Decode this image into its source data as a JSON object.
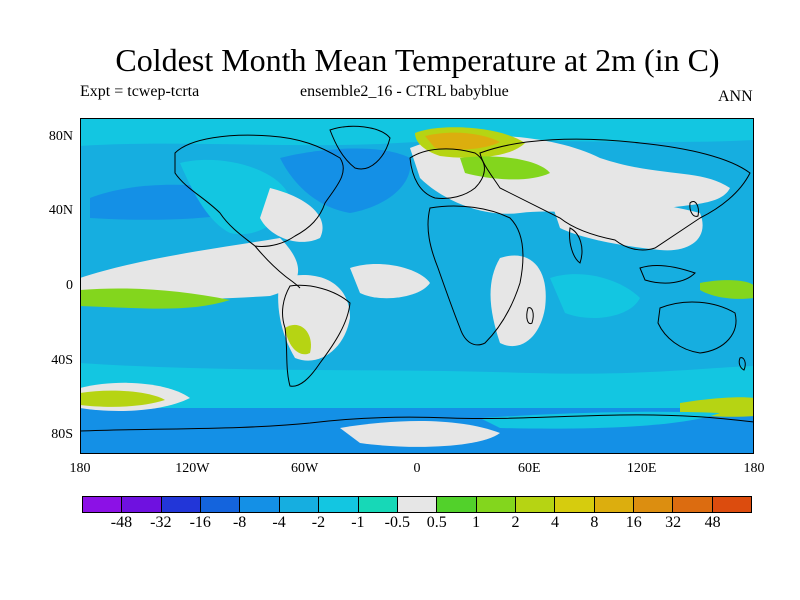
{
  "title": "Coldest Month Mean Temperature at 2m (in C)",
  "expt_label": "Expt = tcwep-tcrta",
  "case_label": "ensemble2_16 - CTRL babyblue",
  "season_label": "ANN",
  "y_axis": {
    "ticks": [
      {
        "value": 80,
        "label": "80N"
      },
      {
        "value": 40,
        "label": "40N"
      },
      {
        "value": 0,
        "label": "0"
      },
      {
        "value": -40,
        "label": "40S"
      },
      {
        "value": -80,
        "label": "80S"
      }
    ]
  },
  "x_axis": {
    "ticks": [
      {
        "value": -180,
        "label": "180"
      },
      {
        "value": -120,
        "label": "120W"
      },
      {
        "value": -60,
        "label": "60W"
      },
      {
        "value": 0,
        "label": "0"
      },
      {
        "value": 60,
        "label": "60E"
      },
      {
        "value": 120,
        "label": "120E"
      },
      {
        "value": 180,
        "label": "180"
      }
    ]
  },
  "colorbar": {
    "colors": [
      "#8c11e6",
      "#6f11e0",
      "#2236d8",
      "#1464dd",
      "#1490e6",
      "#16aee0",
      "#13c6e1",
      "#17d8b7",
      "#e6e6e6",
      "#52d12b",
      "#83d61d",
      "#b6d413",
      "#d6cc0e",
      "#dcae0e",
      "#dc8e10",
      "#dc6c10",
      "#dc4c0e"
    ],
    "labels": [
      "-48",
      "-32",
      "-16",
      "-8",
      "-4",
      "-2",
      "-1",
      "-0.5",
      "0.5",
      "1",
      "2",
      "4",
      "8",
      "16",
      "32",
      "48"
    ]
  },
  "map_colors": {
    "ocean_mid": "#16aee0",
    "ocean_light": "#13c6e1",
    "teal": "#17d8b7",
    "deep_blue": "#1490e6",
    "neutral": "#e6e6e6",
    "green": "#52d12b",
    "yellow_green": "#b6d413",
    "orange": "#dcae0e",
    "coast": "#000000"
  }
}
